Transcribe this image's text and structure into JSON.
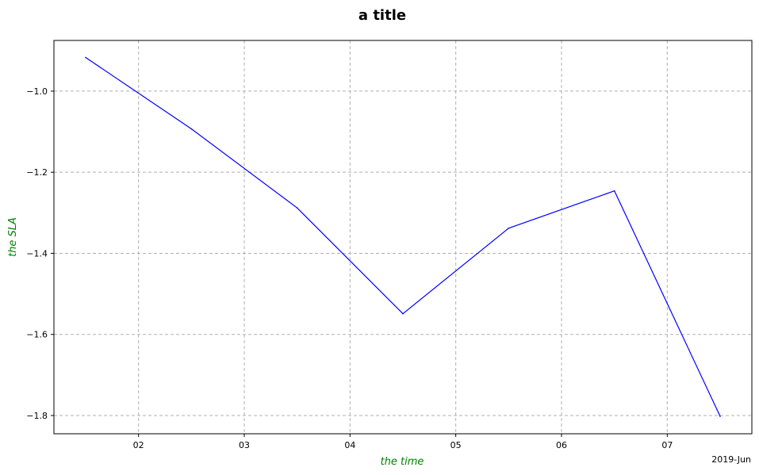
{
  "chart_data": {
    "type": "line",
    "title": "a title",
    "xlabel": "the time",
    "ylabel": "the SLA",
    "x_offset_label": "2019-Jun",
    "x_ticks": [
      "02",
      "03",
      "04",
      "05",
      "06",
      "07"
    ],
    "y_ticks": [
      "−1.0",
      "−1.2",
      "−1.4",
      "−1.6",
      "−1.8"
    ],
    "x_tick_values": [
      2,
      3,
      4,
      5,
      6,
      7
    ],
    "y_tick_values": [
      -1.0,
      -1.2,
      -1.4,
      -1.6,
      -1.8
    ],
    "xlim": [
      1.2,
      7.8
    ],
    "ylim": [
      -1.845,
      -0.875
    ],
    "grid": true,
    "series": [
      {
        "color": "#0000ff",
        "x": [
          1.5,
          2.5,
          3.5,
          4.5,
          5.5,
          6.5,
          7.5
        ],
        "y": [
          -0.917,
          -1.093,
          -1.288,
          -1.549,
          -1.338,
          -1.246,
          -1.802
        ]
      }
    ]
  }
}
